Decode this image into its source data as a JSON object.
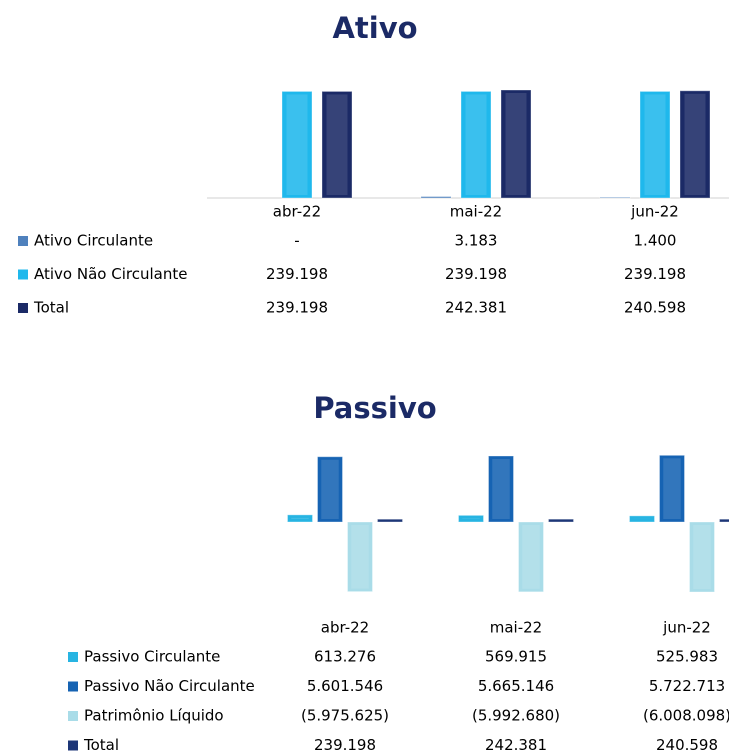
{
  "chart_data": [
    {
      "type": "bar",
      "title": "Ativo",
      "categories": [
        "abr-22",
        "mai-22",
        "jun-22"
      ],
      "series": [
        {
          "name": "Ativo Circulante",
          "color": "#4f81bd",
          "values": [
            0,
            3183,
            1400
          ],
          "value_labels": [
            "-",
            "3.183",
            "1.400"
          ]
        },
        {
          "name": "Ativo Não Circulante",
          "color": "#1fb8ec",
          "values": [
            239198,
            239198,
            239198
          ],
          "value_labels": [
            "239.198",
            "239.198",
            "239.198"
          ]
        },
        {
          "name": "Total",
          "color": "#1b2a66",
          "values": [
            239198,
            242381,
            240598
          ],
          "value_labels": [
            "239.198",
            "242.381",
            "240.598"
          ]
        }
      ]
    },
    {
      "type": "bar",
      "title": "Passivo",
      "categories": [
        "abr-22",
        "mai-22",
        "jun-22"
      ],
      "series": [
        {
          "name": "Passivo Circulante",
          "color": "#27b4e2",
          "values": [
            613276,
            569915,
            525983
          ],
          "value_labels": [
            "613.276",
            "569.915",
            "525.983"
          ]
        },
        {
          "name": "Passivo Não Circulante",
          "color": "#1663b3",
          "values": [
            5601546,
            5665146,
            5722713
          ],
          "value_labels": [
            "5.601.546",
            "5.665.146",
            "5.722.713"
          ]
        },
        {
          "name": "Patrimônio Líquido",
          "color": "#a9dce8",
          "values": [
            -5975625,
            -5992680,
            -6008098
          ],
          "value_labels": [
            "(5.975.625)",
            "(5.992.680)",
            "(6.008.098)"
          ]
        },
        {
          "name": "Total",
          "color": "#1d3677",
          "values": [
            239198,
            242381,
            240598
          ],
          "value_labels": [
            "239.198",
            "242.381",
            "240.598"
          ]
        }
      ]
    }
  ]
}
